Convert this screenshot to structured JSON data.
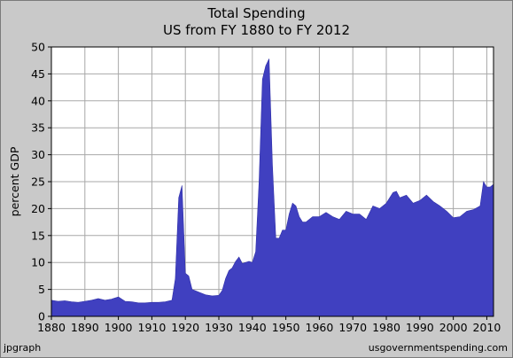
{
  "chart_data": {
    "type": "area",
    "title": "Total Spending",
    "subtitle": "US from FY 1880 to FY 2012",
    "xlabel": "",
    "ylabel": "percent GDP",
    "xlim": [
      1880,
      2012
    ],
    "ylim": [
      0,
      50
    ],
    "xticks": [
      1880,
      1890,
      1900,
      1910,
      1920,
      1930,
      1940,
      1950,
      1960,
      1970,
      1980,
      1990,
      2000,
      2010
    ],
    "yticks": [
      0,
      5,
      10,
      15,
      20,
      25,
      30,
      35,
      40,
      45,
      50
    ],
    "grid": true,
    "fill_color": "#4040c0",
    "plot_background": "#ffffff",
    "series": [
      {
        "x": [
          1880,
          1882,
          1884,
          1886,
          1888,
          1890,
          1892,
          1894,
          1896,
          1898,
          1900,
          1902,
          1904,
          1906,
          1908,
          1910,
          1912,
          1914,
          1916,
          1917,
          1918,
          1919,
          1920,
          1921,
          1922,
          1924,
          1926,
          1928,
          1930,
          1931,
          1932,
          1933,
          1934,
          1935,
          1936,
          1937,
          1938,
          1939,
          1940,
          1941,
          1942,
          1943,
          1944,
          1945,
          1946,
          1947,
          1948,
          1949,
          1950,
          1951,
          1952,
          1953,
          1954,
          1955,
          1956,
          1958,
          1960,
          1962,
          1964,
          1966,
          1968,
          1970,
          1972,
          1974,
          1976,
          1978,
          1980,
          1982,
          1983,
          1984,
          1986,
          1988,
          1990,
          1992,
          1994,
          1996,
          1998,
          2000,
          2002,
          2004,
          2006,
          2008,
          2009,
          2010,
          2011,
          2012
        ],
        "y": [
          3.0,
          2.8,
          2.9,
          2.7,
          2.6,
          2.8,
          3.0,
          3.3,
          3.0,
          3.2,
          3.6,
          2.8,
          2.7,
          2.5,
          2.5,
          2.6,
          2.6,
          2.7,
          3.0,
          7.0,
          22.0,
          24.3,
          8.0,
          7.5,
          5.0,
          4.5,
          4.0,
          3.8,
          3.9,
          4.8,
          7.0,
          8.5,
          9.0,
          10.2,
          11.0,
          9.8,
          10.0,
          10.2,
          10.0,
          12.0,
          25.0,
          44.0,
          46.5,
          47.8,
          28.0,
          14.5,
          14.5,
          16.0,
          16.0,
          19.0,
          21.0,
          20.5,
          18.5,
          17.5,
          17.5,
          18.5,
          18.5,
          19.3,
          18.5,
          18.0,
          19.5,
          19.0,
          19.0,
          18.0,
          20.5,
          20.0,
          21.0,
          23.0,
          23.2,
          22.0,
          22.5,
          21.0,
          21.5,
          22.5,
          21.3,
          20.5,
          19.5,
          18.3,
          18.5,
          19.5,
          19.8,
          20.5,
          25.0,
          24.0,
          24.0,
          24.5
        ]
      }
    ],
    "credit_left": "jpgraph",
    "credit_right": "usgovernmentspending.com"
  }
}
